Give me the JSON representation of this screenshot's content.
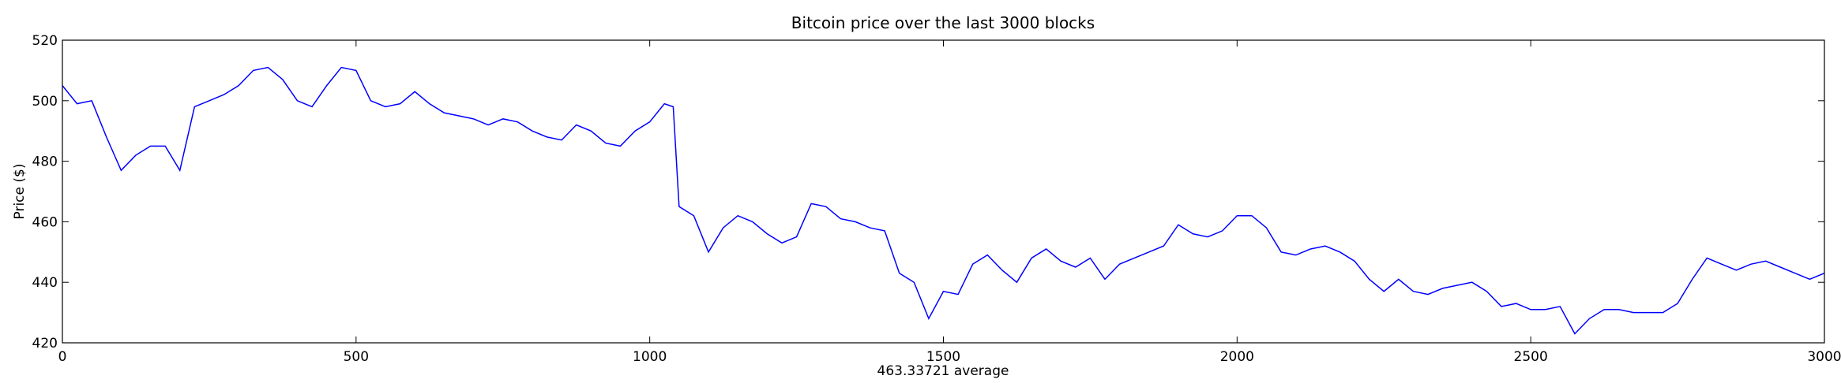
{
  "chart_data": {
    "type": "line",
    "title": "Bitcoin price over the last 3000 blocks",
    "x_label": "463.33721 average",
    "y_label": "Price ($)",
    "x": [
      0,
      25,
      50,
      75,
      100,
      125,
      150,
      175,
      200,
      225,
      250,
      275,
      300,
      325,
      350,
      375,
      400,
      425,
      450,
      475,
      500,
      525,
      550,
      575,
      600,
      625,
      650,
      675,
      700,
      725,
      750,
      775,
      800,
      825,
      850,
      875,
      900,
      925,
      950,
      975,
      1000,
      1025,
      1040,
      1050,
      1075,
      1100,
      1125,
      1150,
      1175,
      1200,
      1225,
      1250,
      1275,
      1300,
      1325,
      1350,
      1375,
      1400,
      1425,
      1450,
      1475,
      1500,
      1525,
      1550,
      1575,
      1600,
      1625,
      1650,
      1675,
      1700,
      1725,
      1750,
      1775,
      1800,
      1825,
      1850,
      1875,
      1900,
      1925,
      1950,
      1975,
      2000,
      2025,
      2050,
      2075,
      2100,
      2125,
      2150,
      2175,
      2200,
      2225,
      2250,
      2275,
      2300,
      2325,
      2350,
      2375,
      2400,
      2425,
      2450,
      2475,
      2500,
      2525,
      2550,
      2575,
      2600,
      2625,
      2650,
      2675,
      2700,
      2725,
      2750,
      2775,
      2800,
      2825,
      2850,
      2875,
      2900,
      2925,
      2950,
      2975,
      3000
    ],
    "series": [
      {
        "name": "Price",
        "color": "#0000ff",
        "values": [
          505,
          499,
          500,
          488,
          477,
          482,
          485,
          485,
          477,
          498,
          500,
          502,
          505,
          510,
          511,
          507,
          500,
          498,
          505,
          511,
          510,
          500,
          498,
          499,
          503,
          499,
          496,
          495,
          494,
          492,
          494,
          493,
          490,
          488,
          487,
          492,
          490,
          486,
          485,
          490,
          493,
          499,
          498,
          465,
          462,
          450,
          458,
          462,
          460,
          456,
          453,
          455,
          466,
          465,
          461,
          460,
          458,
          457,
          443,
          440,
          428,
          437,
          436,
          446,
          449,
          444,
          440,
          448,
          451,
          447,
          445,
          448,
          441,
          446,
          448,
          450,
          452,
          459,
          456,
          455,
          457,
          462,
          462,
          458,
          450,
          449,
          451,
          452,
          450,
          447,
          441,
          437,
          441,
          437,
          436,
          438,
          439,
          440,
          437,
          432,
          433,
          431,
          431,
          432,
          423,
          428,
          431,
          431,
          430,
          430,
          430,
          433,
          441,
          448,
          446,
          444,
          446,
          447,
          445,
          443,
          441,
          443
        ]
      }
    ],
    "xlim": [
      0,
      3000
    ],
    "xticks": [
      0,
      500,
      1000,
      1500,
      2000,
      2500,
      3000
    ],
    "ylim": [
      420,
      520
    ],
    "yticks": [
      420,
      440,
      460,
      480,
      500,
      520
    ],
    "grid": false
  }
}
